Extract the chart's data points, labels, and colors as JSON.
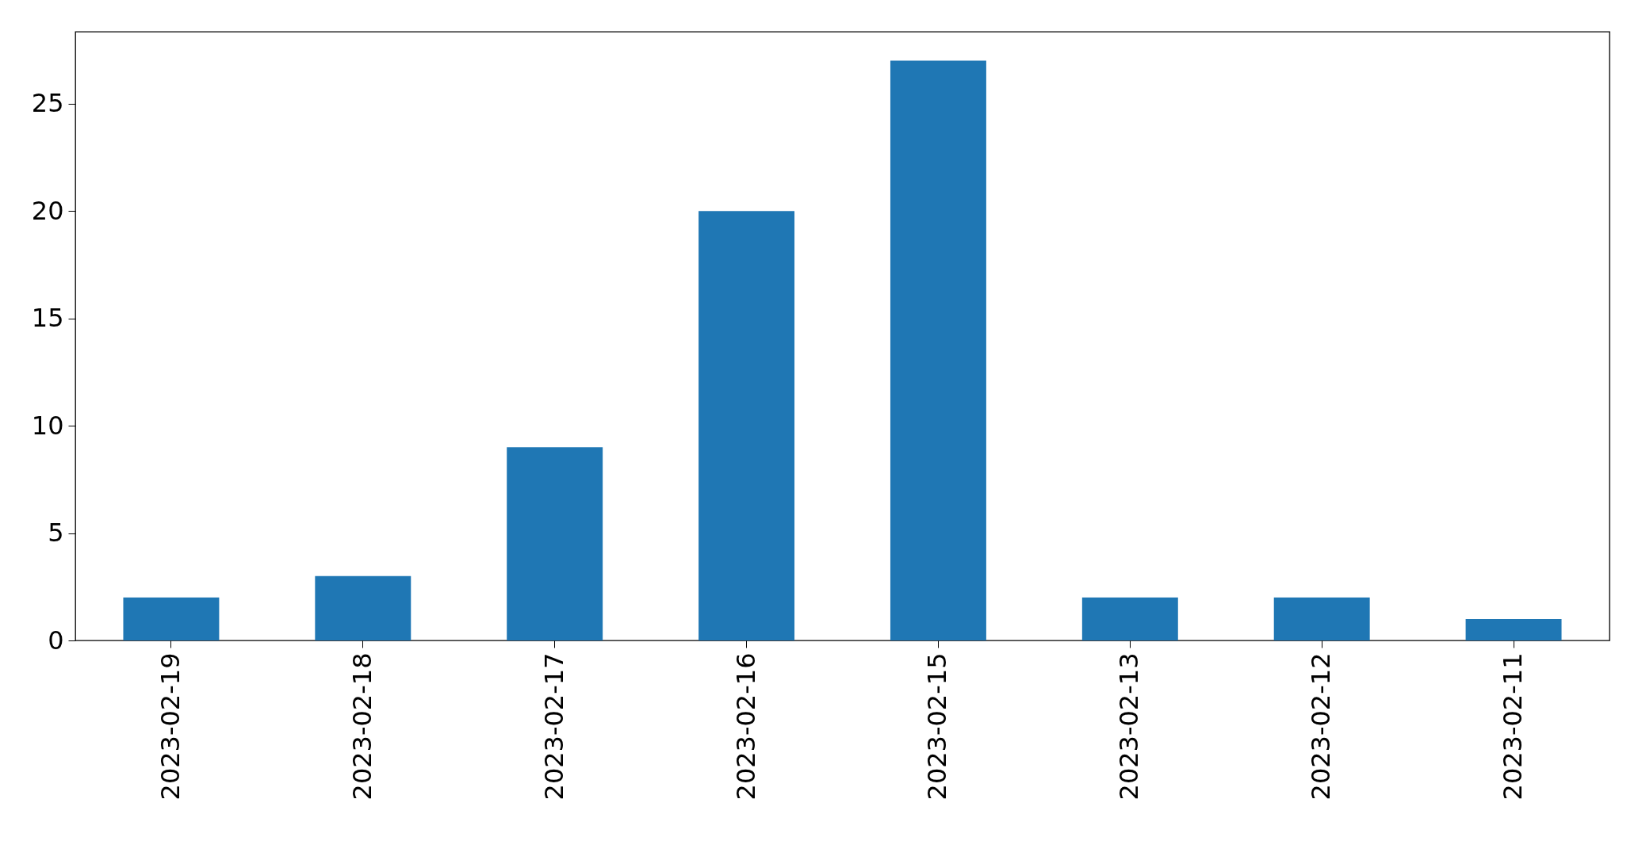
{
  "chart_data": {
    "type": "bar",
    "categories": [
      "2023-02-19",
      "2023-02-18",
      "2023-02-17",
      "2023-02-16",
      "2023-02-15",
      "2023-02-13",
      "2023-02-12",
      "2023-02-11"
    ],
    "values": [
      2,
      3,
      9,
      20,
      27,
      2,
      2,
      1
    ],
    "color": "#1f77b4",
    "ylim": [
      0,
      28.35
    ],
    "yticks": [
      0,
      5,
      10,
      15,
      20,
      25
    ],
    "grid": false
  }
}
